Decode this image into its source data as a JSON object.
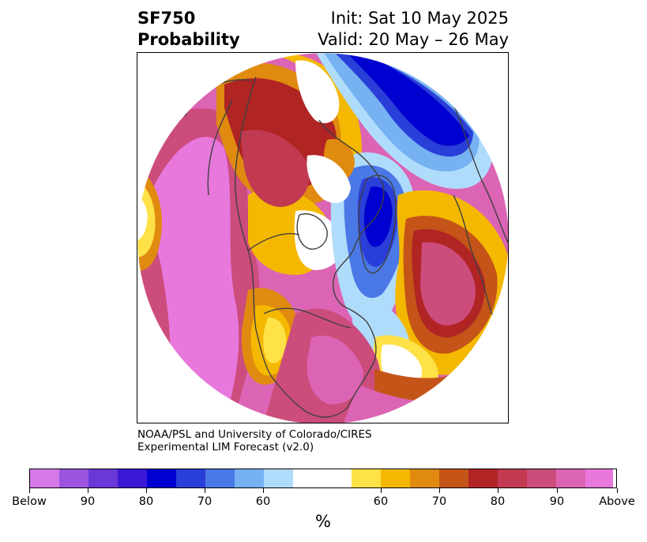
{
  "header": {
    "title_line1": "SF750",
    "title_line2": "Probability",
    "init_text": "Init: Sat 10 May 2025",
    "valid_text": "Valid: 20 May – 26 May"
  },
  "credit": {
    "line1": "NOAA/PSL and University of Colorado/CIRES",
    "line2": "Experimental LIM Forecast (v2.0)"
  },
  "colorbar": {
    "unit": "%",
    "colors": [
      "#d679e8",
      "#9b55e0",
      "#6a38d8",
      "#3a18d6",
      "#0000d0",
      "#2a3ed8",
      "#4a78e6",
      "#76b2f2",
      "#b0dcfc",
      "#ffffff",
      "#ffe148",
      "#f4b800",
      "#e08a10",
      "#c45418",
      "#b02424",
      "#c23a52",
      "#cc4c7c",
      "#dc64b4",
      "#e878dc"
    ],
    "tick_labels": [
      "Below",
      "90",
      "80",
      "70",
      "60",
      "60",
      "70",
      "80",
      "90",
      "Above"
    ]
  },
  "map_colors": {
    "pink": "#e878dc",
    "magenta": "#dc64b4",
    "rose": "#cc4c7c",
    "crimson": "#c23a52",
    "red": "#b02424",
    "orange_red": "#c45418",
    "orange": "#e08a10",
    "gold": "#f4b800",
    "yellow": "#ffe148",
    "light_blue": "#b0dcfc",
    "sky": "#76b2f2",
    "blue": "#4a78e6",
    "royal": "#2a3ed8",
    "navy": "#0000d0",
    "indigo": "#3a18d6",
    "violet": "#6a38d8",
    "purple": "#9b55e0",
    "lavender": "#d679e8",
    "coast": "#404040"
  }
}
